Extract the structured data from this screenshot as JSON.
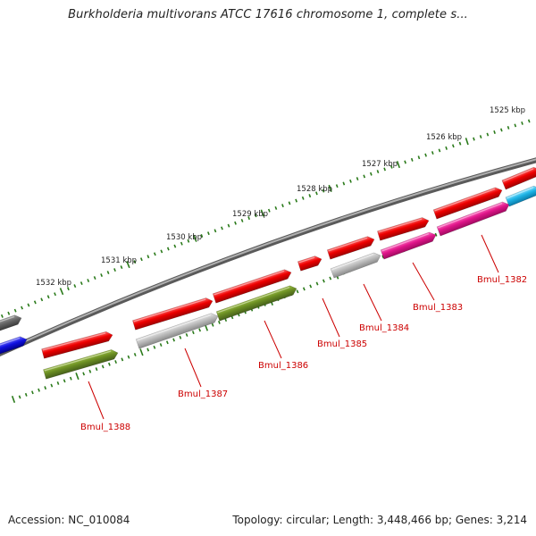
{
  "title": "Burkholderia multivorans ATCC 17616 chromosome 1, complete s...",
  "footer": {
    "accession": "Accession: NC_010084",
    "summary": "Topology: circular; Length: 3,448,466 bp; Genes: 3,214"
  },
  "colors": {
    "backbone": "#808080",
    "scale_ticks": "#2a7a1a",
    "gene_label": "#cc0000",
    "leader_line": "#cc0000"
  },
  "scale_ticks": [
    {
      "label": "1525 kbp"
    },
    {
      "label": "1526 kbp"
    },
    {
      "label": "1527 kbp"
    },
    {
      "label": "1528 kbp"
    },
    {
      "label": "1529 kbp"
    },
    {
      "label": "1530 kbp"
    },
    {
      "label": "1531 kbp"
    },
    {
      "label": "1532 kbp"
    }
  ],
  "genes": [
    {
      "label": "Bmul_1382",
      "color": "red"
    },
    {
      "label": "Bmul_1383",
      "color": "red"
    },
    {
      "label": "Bmul_1384",
      "color": "red"
    },
    {
      "label": "Bmul_1385",
      "color": "red"
    },
    {
      "label": "Bmul_1386",
      "color": "red"
    },
    {
      "label": "Bmul_1387",
      "color": "red"
    },
    {
      "label": "Bmul_1388",
      "color": "red"
    }
  ],
  "feature_colors": {
    "red": "#ee0000",
    "gray": "#b8b8b8",
    "olive": "#6b8e23",
    "magenta": "#e0158a",
    "cyan": "#1eb4e6",
    "blue": "#1010e0",
    "darkgray": "#666666"
  }
}
